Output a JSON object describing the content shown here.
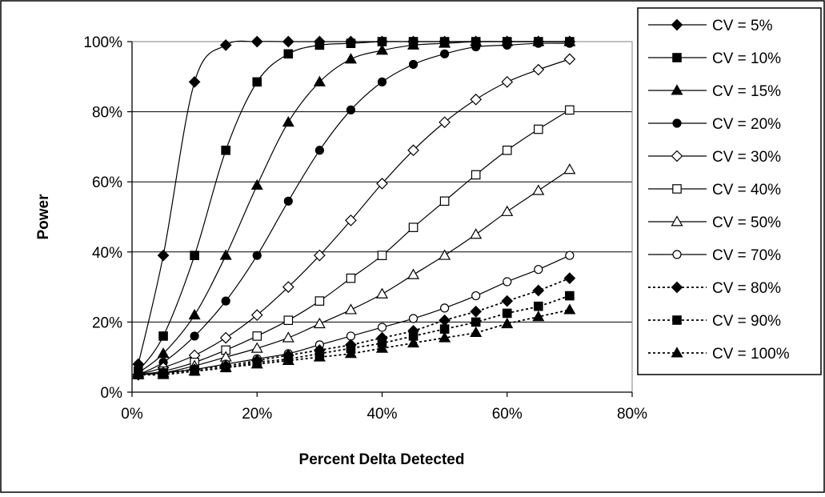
{
  "chart_data": {
    "type": "line",
    "title": "",
    "xlabel": "Percent Delta Detected",
    "ylabel": "Power",
    "xlim": [
      0,
      80
    ],
    "ylim": [
      0,
      100
    ],
    "x_ticks": [
      0,
      20,
      40,
      60,
      80
    ],
    "y_ticks": [
      0,
      20,
      40,
      60,
      80,
      100
    ],
    "x_tick_labels": [
      "0%",
      "20%",
      "40%",
      "60%",
      "80%"
    ],
    "y_tick_labels": [
      "0%",
      "20%",
      "40%",
      "60%",
      "80%",
      "100%"
    ],
    "grid": "horizontal major gridlines",
    "legend_position": "right",
    "x": [
      1,
      5,
      10,
      15,
      20,
      25,
      30,
      35,
      40,
      45,
      50,
      55,
      60,
      65,
      70
    ],
    "series": [
      {
        "name": "CV = 5%",
        "marker": "diamond",
        "filled": true,
        "dashed": false,
        "values": [
          8,
          39,
          88.5,
          99,
          100,
          100,
          100,
          100,
          100,
          100,
          100,
          100,
          100,
          100,
          100
        ]
      },
      {
        "name": "CV = 10%",
        "marker": "square",
        "filled": true,
        "dashed": false,
        "values": [
          6,
          16,
          39,
          69,
          88.5,
          96.5,
          99,
          99.5,
          100,
          100,
          100,
          100,
          100,
          100,
          100
        ]
      },
      {
        "name": "CV = 15%",
        "marker": "triangle",
        "filled": true,
        "dashed": false,
        "values": [
          5.5,
          11,
          22,
          39,
          59,
          77,
          88.5,
          95,
          97.5,
          99,
          99.5,
          100,
          100,
          100,
          100
        ]
      },
      {
        "name": "CV = 20%",
        "marker": "circle",
        "filled": true,
        "dashed": false,
        "values": [
          5,
          8.5,
          16,
          26,
          39,
          54.5,
          69,
          80.5,
          88.5,
          93.5,
          96.5,
          98.5,
          99,
          99.5,
          99.5
        ]
      },
      {
        "name": "CV = 30%",
        "marker": "diamond",
        "filled": false,
        "dashed": false,
        "values": [
          5,
          7,
          10.5,
          15.5,
          22,
          30,
          39,
          49,
          59.5,
          69,
          77,
          83.5,
          88.5,
          92,
          95
        ]
      },
      {
        "name": "CV = 40%",
        "marker": "square",
        "filled": false,
        "dashed": false,
        "values": [
          5,
          6,
          8.5,
          12,
          16,
          20.5,
          26,
          32.5,
          39,
          47,
          54.5,
          62,
          69,
          75,
          80.5
        ]
      },
      {
        "name": "CV = 50%",
        "marker": "triangle",
        "filled": false,
        "dashed": false,
        "values": [
          5,
          5.5,
          7.5,
          10,
          12.5,
          15.5,
          19.5,
          23.5,
          28,
          33.5,
          39,
          45,
          51.5,
          57.5,
          63.5
        ]
      },
      {
        "name": "CV = 70%",
        "marker": "circle",
        "filled": false,
        "dashed": false,
        "values": [
          5,
          5.5,
          6.5,
          8,
          9.5,
          11,
          13.5,
          16,
          18.5,
          21,
          24,
          27.5,
          31.5,
          35,
          39
        ]
      },
      {
        "name": "CV = 80%",
        "marker": "diamond",
        "filled": true,
        "dashed": true,
        "values": [
          5,
          5.5,
          6.5,
          7.5,
          9,
          10.5,
          12,
          13.5,
          15.5,
          17.5,
          20.5,
          23,
          26,
          29,
          32.5
        ]
      },
      {
        "name": "CV = 90%",
        "marker": "square",
        "filled": true,
        "dashed": true,
        "values": [
          5,
          5.5,
          6,
          7,
          8.5,
          9.5,
          11,
          12.5,
          14,
          16,
          18,
          20,
          22.5,
          24.5,
          27.5
        ]
      },
      {
        "name": "CV = 100%",
        "marker": "triangle",
        "filled": true,
        "dashed": true,
        "values": [
          5,
          5,
          6,
          7,
          8,
          9,
          10,
          11,
          12.5,
          14,
          15.5,
          17,
          19.5,
          21.5,
          23.5
        ]
      }
    ]
  }
}
